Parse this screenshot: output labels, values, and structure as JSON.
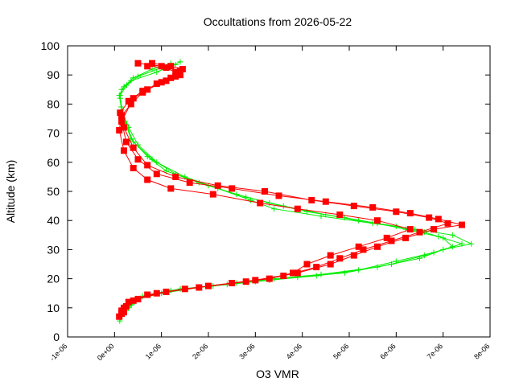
{
  "chart_data": {
    "type": "scatter",
    "title": "Occultations from 2026-05-22",
    "xlabel": "O3 VMR",
    "ylabel": "Altitude (km)",
    "xlim": [
      -1e-06,
      8e-06
    ],
    "ylim": [
      0,
      100
    ],
    "x_ticks": [
      -1e-06,
      0,
      1e-06,
      2e-06,
      3e-06,
      4e-06,
      5e-06,
      6e-06,
      7e-06,
      8e-06
    ],
    "x_tick_labels": [
      "-1e-06",
      "0e+00",
      "1e-06",
      "2e-06",
      "3e-06",
      "4e-06",
      "5e-06",
      "6e-06",
      "7e-06",
      "8e-06"
    ],
    "y_ticks": [
      0,
      10,
      20,
      30,
      40,
      50,
      60,
      70,
      80,
      90,
      100
    ],
    "y_tick_labels": [
      "0",
      "10",
      "20",
      "30",
      "40",
      "50",
      "60",
      "70",
      "80",
      "90",
      "100"
    ],
    "grid": false,
    "legend": "none",
    "colors": {
      "series_green": "#00ee00",
      "series_red": "#ff0000",
      "axis": "#000000"
    },
    "series": [
      {
        "marker": "plus",
        "color": "#00ee00",
        "profiles": [
          {
            "x": [
              1.1e-07,
              1.5e-07,
              2.5e-07,
              3.5e-07,
              5e-07,
              1e-06,
              1.8e-06,
              2.6e-06,
              3.4e-06,
              4.4e-06,
              5.6e-06,
              6.5e-06,
              7e-06,
              7.6e-06,
              7.2e-06,
              6.4e-06,
              5.5e-06,
              4.4e-06,
              3.4e-06,
              2.9e-06,
              2.2e-06,
              1.5e-06,
              9e-07,
              5e-07,
              3e-07,
              1.8e-07,
              1.2e-07,
              1.5e-07,
              3.5e-07,
              9e-07,
              1.4e-06
            ],
            "y": [
              5.5,
              7,
              9,
              11,
              13,
              15,
              17,
              18.5,
              20,
              21.5,
              24,
              27,
              30,
              32,
              35,
              37,
              39,
              41.5,
              44,
              47,
              51,
              55,
              60,
              66,
              72,
              77,
              82,
              85,
              88,
              91,
              94.5
            ]
          },
          {
            "x": [
              1.3e-07,
              2e-07,
              3e-07,
              4.2e-07,
              6e-07,
              1.2e-06,
              2.1e-06,
              3e-06,
              3.9e-06,
              4.9e-06,
              5.9e-06,
              6.6e-06,
              7.2e-06,
              7e-06,
              6.6e-06,
              6e-06,
              5.2e-06,
              4.5e-06,
              3.6e-06,
              2.8e-06,
              2e-06,
              1.3e-06,
              8e-07,
              4e-07,
              2.5e-07,
              1.5e-07,
              1e-07,
              2e-07,
              4e-07,
              8e-07,
              1.2e-06
            ],
            "y": [
              7,
              8.5,
              10,
              12,
              14,
              16,
              17.5,
              19,
              20.5,
              22,
              25,
              28,
              31,
              34,
              36,
              38,
              40,
              42,
              45,
              48,
              52,
              56,
              61,
              67,
              73,
              78,
              83,
              86,
              89,
              92,
              94
            ]
          },
          {
            "x": [
              1.6e-07,
              2.4e-07,
              3.6e-07,
              5e-07,
              7.5e-07,
              1.4e-06,
              2.4e-06,
              3.3e-06,
              4.3e-06,
              5.2e-06,
              6e-06,
              6.8e-06,
              7.4e-06,
              6.9e-06,
              6.2e-06,
              5.6e-06,
              4.9e-06,
              4.1e-06,
              3.3e-06,
              2.6e-06,
              1.8e-06,
              1.1e-06,
              7e-07,
              3.5e-07,
              2.2e-07,
              1.4e-07,
              1.2e-07,
              2.6e-07,
              5e-07,
              1e-06,
              1.3e-06
            ],
            "y": [
              8,
              9.5,
              11,
              13,
              14.5,
              16.5,
              18,
              19.5,
              21,
              23,
              26,
              29,
              32,
              34.5,
              37,
              39,
              41,
              43,
              46,
              49,
              53,
              57,
              62,
              68,
              74,
              79,
              83,
              86.5,
              89.5,
              92.5,
              93.5
            ]
          }
        ]
      },
      {
        "marker": "square",
        "color": "#ff0000",
        "profiles": [
          {
            "x": [
              1e-07,
              1.5e-07,
              3e-07,
              7e-07,
              1.5e-06,
              2.5e-06,
              3.3e-06,
              3.8e-06,
              4.1e-06,
              4.6e-06,
              5.2e-06,
              5.8e-06,
              6.3e-06,
              5.6e-06,
              4.8e-06,
              3.9e-06,
              3.1e-06,
              2.1e-06,
              1.2e-06,
              7e-07,
              4e-07,
              2e-07,
              1e-07,
              1.5e-07,
              3.5e-07,
              6e-07,
              9e-07,
              1.2e-06,
              1.3e-06,
              1e-06,
              5e-07
            ],
            "y": [
              7,
              9,
              12,
              14.5,
              16.5,
              18.5,
              20,
              22,
              25,
              28,
              31,
              34,
              37,
              40,
              42,
              44,
              46,
              49,
              51,
              54,
              58,
              64,
              71,
              76,
              80,
              84,
              87,
              89,
              91,
              93,
              94
            ]
          },
          {
            "x": [
              1.5e-07,
              2e-07,
              4e-07,
              9e-07,
              1.8e-06,
              2.8e-06,
              3.6e-06,
              4.3e-06,
              4.8e-06,
              5.3e-06,
              5.9e-06,
              6.5e-06,
              7.1e-06,
              6.7e-06,
              6e-06,
              5.1e-06,
              4.2e-06,
              3.2e-06,
              2.2e-06,
              1.3e-06,
              7e-07,
              4e-07,
              2e-07,
              1.2e-07,
              3e-07,
              6e-07,
              1e-06,
              1.3e-06,
              1.4e-06,
              1.1e-06,
              7e-07
            ],
            "y": [
              8,
              10,
              12.5,
              15,
              17,
              19,
              21,
              24,
              27,
              30,
              33,
              36,
              39,
              41,
              43,
              45,
              47,
              50,
              52,
              55,
              59,
              65,
              72,
              77,
              81,
              84.5,
              87.5,
              89.5,
              91.5,
              92.5,
              93
            ]
          },
          {
            "x": [
              2e-07,
              2.5e-07,
              5e-07,
              1.1e-06,
              2e-06,
              3e-06,
              3.9e-06,
              4.6e-06,
              5.1e-06,
              5.6e-06,
              6.2e-06,
              6.8e-06,
              7.4e-06,
              6.9e-06,
              6.3e-06,
              5.5e-06,
              4.5e-06,
              3.5e-06,
              2.5e-06,
              1.6e-06,
              9e-07,
              5e-07,
              2.5e-07,
              1.5e-07,
              4e-07,
              7e-07,
              1.1e-06,
              1.4e-06,
              1.45e-06,
              1.2e-06,
              8e-07
            ],
            "y": [
              8.5,
              10.5,
              13,
              15.5,
              17.5,
              19.5,
              22,
              25,
              28,
              31,
              34,
              37,
              38.5,
              40.5,
              42.5,
              44.5,
              46.5,
              48.5,
              51,
              53,
              56,
              61,
              67,
              74,
              82,
              85,
              88,
              90,
              92,
              93,
              94
            ]
          }
        ]
      }
    ]
  }
}
